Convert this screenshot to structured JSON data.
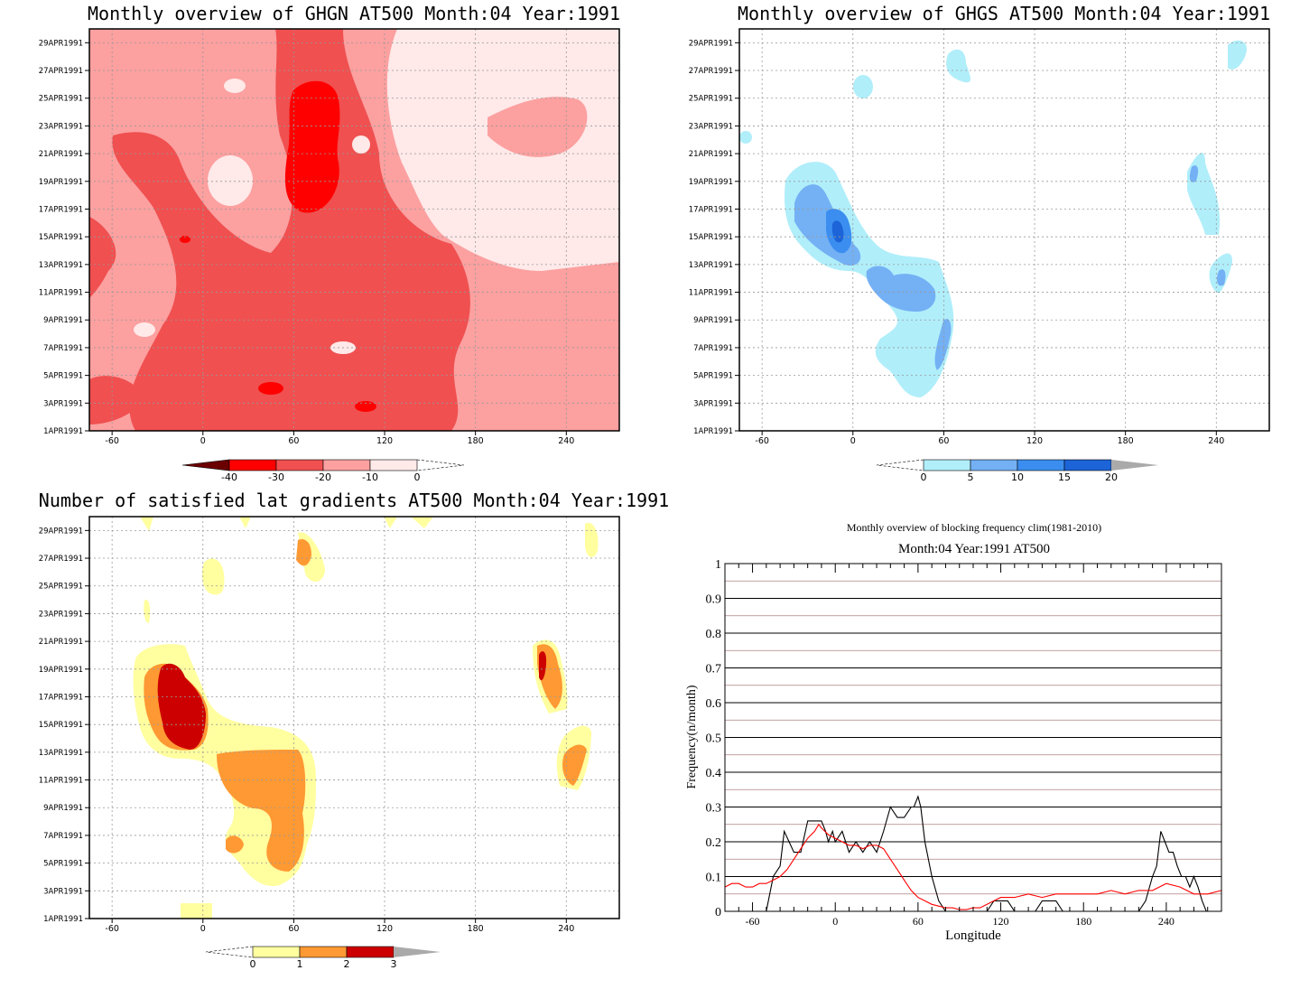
{
  "panels": {
    "ghgn": {
      "title": "Monthly overview of GHGN AT500 Month:04 Year:1991",
      "colorbar": {
        "labels": [
          "-40",
          "-30",
          "-20",
          "-10",
          "0"
        ],
        "colors": [
          "#6b0000",
          "#ff0000",
          "#f05050",
          "#fca0a0",
          "#ffe9e9"
        ]
      }
    },
    "ghgs": {
      "title": "Monthly overview of GHGS AT500 Month:04 Year:1991",
      "colorbar": {
        "labels": [
          "0",
          "5",
          "10",
          "15",
          "20"
        ],
        "colors": [
          "#b0eefa",
          "#74b0f4",
          "#3b8ef0",
          "#1c64d8",
          "#aaaaaa"
        ]
      }
    },
    "latgrad": {
      "title": "Number of satisfied lat gradients AT500 Month:04 Year:1991",
      "colorbar": {
        "labels": [
          "0",
          "1",
          "2",
          "3"
        ],
        "colors": [
          "#ffffa0",
          "#ff9933",
          "#cc0000",
          "#aaaaaa"
        ]
      }
    },
    "blocking": {
      "title": "Monthly overview of blocking frequency clim(1981-2010)",
      "subtitle": "Month:04 Year:1991  AT500",
      "xlabel": "Longitude",
      "ylabel": "Frequency(n/month)"
    }
  },
  "axes": {
    "lon_ticks": [
      "-60",
      "0",
      "60",
      "120",
      "180",
      "240"
    ],
    "date_ticks": [
      "1APR1991",
      "3APR1991",
      "5APR1991",
      "7APR1991",
      "9APR1991",
      "11APR1991",
      "13APR1991",
      "15APR1991",
      "17APR1991",
      "19APR1991",
      "21APR1991",
      "23APR1991",
      "25APR1991",
      "27APR1991",
      "29APR1991"
    ],
    "freq_ticks": [
      "0",
      "0.1",
      "0.2",
      "0.3",
      "0.4",
      "0.5",
      "0.6",
      "0.7",
      "0.8",
      "0.9",
      "1"
    ]
  },
  "chart_data": [
    {
      "type": "heatmap",
      "title": "Monthly overview of GHGN AT500 Month:04 Year:1991",
      "x_range": [
        -75,
        275
      ],
      "y_range": [
        "1APR1991",
        "30APR1991"
      ],
      "levels": [
        -40,
        -30,
        -20,
        -10,
        0
      ],
      "colormap": [
        "#6b0000",
        "#ff0000",
        "#f05050",
        "#fca0a0",
        "#ffe9e9"
      ]
    },
    {
      "type": "heatmap",
      "title": "Monthly overview of GHGS AT500 Month:04 Year:1991",
      "x_range": [
        -75,
        275
      ],
      "y_range": [
        "1APR1991",
        "30APR1991"
      ],
      "levels": [
        0,
        5,
        10,
        15,
        20
      ],
      "colormap": [
        "#b0eefa",
        "#74b0f4",
        "#3b8ef0",
        "#1c64d8",
        "#aaaaaa"
      ]
    },
    {
      "type": "heatmap",
      "title": "Number of satisfied lat gradients AT500 Month:04 Year:1991",
      "x_range": [
        -75,
        275
      ],
      "y_range": [
        "1APR1991",
        "30APR1991"
      ],
      "levels": [
        0,
        1,
        2,
        3
      ],
      "colormap": [
        "#ffffa0",
        "#ff9933",
        "#cc0000",
        "#aaaaaa"
      ]
    },
    {
      "type": "line",
      "title": "Monthly overview of blocking frequency clim(1981-2010)",
      "subtitle": "Month:04 Year:1991  AT500",
      "xlabel": "Longitude",
      "ylabel": "Frequency(n/month)",
      "xlim": [
        -80,
        280
      ],
      "ylim": [
        0,
        1
      ],
      "grid": true,
      "series": [
        {
          "color": "#000000",
          "x": [
            -50,
            -45,
            -40,
            -37,
            -30,
            -25,
            -20,
            -15,
            -10,
            -7,
            -5,
            -2,
            0,
            5,
            10,
            15,
            20,
            25,
            30,
            35,
            40,
            45,
            50,
            55,
            57,
            60,
            62,
            65,
            70,
            75,
            80,
            85,
            90,
            95,
            100,
            105,
            110,
            115,
            120,
            125,
            130,
            135,
            140,
            145,
            150,
            155,
            160,
            165,
            170,
            175,
            180,
            185,
            190,
            195,
            200,
            205,
            210,
            215,
            220,
            225,
            230,
            233,
            236,
            239,
            242,
            245,
            248,
            251,
            254,
            257,
            260,
            263,
            266,
            269,
            272
          ],
          "y": [
            0.0,
            0.1,
            0.13,
            0.23,
            0.17,
            0.17,
            0.26,
            0.26,
            0.26,
            0.23,
            0.2,
            0.23,
            0.2,
            0.23,
            0.17,
            0.2,
            0.17,
            0.2,
            0.17,
            0.23,
            0.3,
            0.27,
            0.27,
            0.3,
            0.3,
            0.33,
            0.3,
            0.2,
            0.1,
            0.03,
            0.0,
            0.0,
            0.0,
            0.0,
            0.0,
            0.0,
            0.0,
            0.03,
            0.03,
            0.03,
            0.0,
            0.0,
            0.0,
            0.0,
            0.03,
            0.03,
            0.03,
            0.0,
            0.0,
            0.0,
            0.0,
            0.0,
            0.0,
            0.0,
            0.0,
            0.0,
            0.0,
            0.0,
            0.0,
            0.03,
            0.1,
            0.13,
            0.23,
            0.2,
            0.17,
            0.17,
            0.13,
            0.1,
            0.1,
            0.07,
            0.1,
            0.07,
            0.03,
            0.0,
            0.0
          ]
        },
        {
          "color": "#ff0000",
          "x": [
            -80,
            -75,
            -70,
            -65,
            -60,
            -55,
            -50,
            -45,
            -40,
            -35,
            -30,
            -25,
            -20,
            -15,
            -12,
            -10,
            -5,
            0,
            5,
            10,
            15,
            20,
            25,
            30,
            35,
            40,
            45,
            50,
            55,
            60,
            65,
            70,
            75,
            80,
            85,
            90,
            95,
            100,
            105,
            110,
            115,
            120,
            125,
            130,
            140,
            150,
            160,
            170,
            180,
            190,
            200,
            210,
            220,
            230,
            240,
            250,
            260,
            270,
            280
          ],
          "y": [
            0.07,
            0.08,
            0.08,
            0.07,
            0.07,
            0.08,
            0.08,
            0.09,
            0.1,
            0.12,
            0.15,
            0.18,
            0.21,
            0.23,
            0.25,
            0.24,
            0.22,
            0.21,
            0.2,
            0.19,
            0.19,
            0.18,
            0.19,
            0.19,
            0.18,
            0.15,
            0.12,
            0.09,
            0.06,
            0.04,
            0.03,
            0.02,
            0.015,
            0.01,
            0.01,
            0.005,
            0.005,
            0.01,
            0.01,
            0.02,
            0.03,
            0.04,
            0.04,
            0.04,
            0.05,
            0.04,
            0.05,
            0.05,
            0.05,
            0.05,
            0.06,
            0.05,
            0.06,
            0.06,
            0.08,
            0.07,
            0.05,
            0.05,
            0.06
          ]
        }
      ]
    }
  ]
}
